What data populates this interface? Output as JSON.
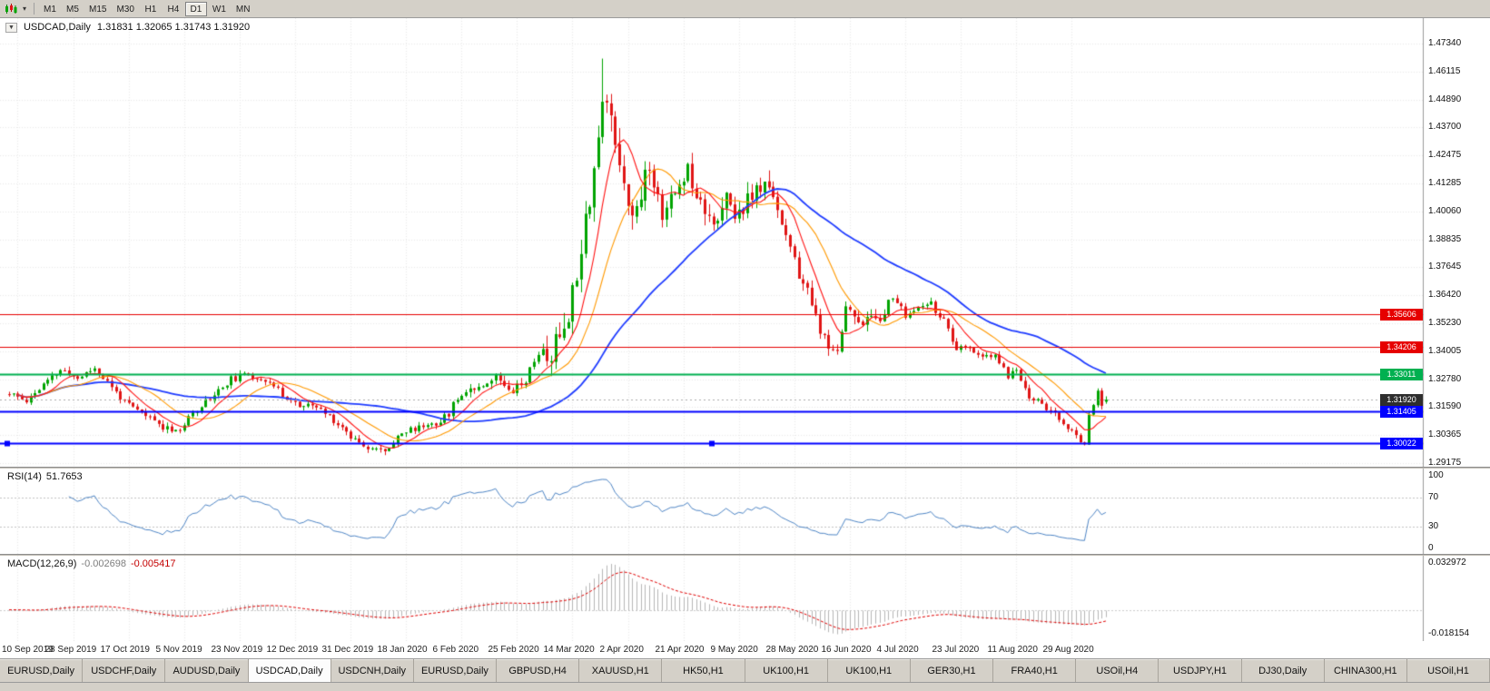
{
  "toolbar": {
    "timeframes": [
      "M1",
      "M5",
      "M15",
      "M30",
      "H1",
      "H4",
      "D1",
      "W1",
      "MN"
    ],
    "active": "D1"
  },
  "chart": {
    "symbol": "USDCAD,Daily",
    "ohlc": "1.31831 1.32065 1.31743 1.31920",
    "open": "1.31831",
    "high": "1.32065",
    "low": "1.31743",
    "close": "1.31920"
  },
  "rsi": {
    "name": "RSI(14)",
    "value": "51.7653"
  },
  "macd": {
    "name": "MACD(12,26,9)",
    "value1": "-0.002698",
    "value2": "-0.005417"
  },
  "tabs": {
    "active_index": 3,
    "items": [
      "EURUSD,Daily",
      "USDCHF,Daily",
      "AUDUSD,Daily",
      "USDCAD,Daily",
      "USDCNH,Daily",
      "EURUSD,Daily",
      "GBPUSD,H4",
      "XAUUSD,H1",
      "HK50,H1",
      "UK100,H1",
      "UK100,H1",
      "GER30,H1",
      "FRA40,H1",
      "USOil,H4",
      "USDJPY,H1",
      "DJ30,Daily",
      "CHINA300,H1",
      "USOil,H1"
    ]
  },
  "chart_data": {
    "type": "candlestick",
    "symbol": "USDCAD",
    "timeframe": "Daily",
    "candle_count": 258,
    "price_axis": {
      "max": 1.4734,
      "min": 1.29175,
      "ticks": [
        "1.47340",
        "1.46115",
        "1.44890",
        "1.43700",
        "1.42475",
        "1.41285",
        "1.40060",
        "1.38835",
        "1.37645",
        "1.36420",
        "1.35230",
        "1.34005",
        "1.32780",
        "1.31590",
        "1.30365",
        "1.29175"
      ]
    },
    "x_ticks": {
      "start_index": 2,
      "step": 13,
      "labels": [
        "10 Sep 2019",
        "28 Sep 2019",
        "17 Oct 2019",
        "5 Nov 2019",
        "23 Nov 2019",
        "12 Dec 2019",
        "31 Dec 2019",
        "18 Jan 2020",
        "6 Feb 2020",
        "25 Feb 2020",
        "14 Mar 2020",
        "2 Apr 2020",
        "21 Apr 2020",
        "9 May 2020",
        "28 May 2020",
        "16 Jun 2020",
        "4 Jul 2020",
        "23 Jul 2020",
        "11 Aug 2020",
        "29 Aug 2020"
      ]
    },
    "close_anchors": [
      [
        0,
        1.3215
      ],
      [
        4,
        1.319
      ],
      [
        8,
        1.3255
      ],
      [
        12,
        1.332
      ],
      [
        16,
        1.3285
      ],
      [
        20,
        1.333
      ],
      [
        24,
        1.3245
      ],
      [
        28,
        1.3165
      ],
      [
        32,
        1.3125
      ],
      [
        36,
        1.3075
      ],
      [
        40,
        1.306
      ],
      [
        44,
        1.3155
      ],
      [
        48,
        1.3215
      ],
      [
        52,
        1.328
      ],
      [
        56,
        1.33
      ],
      [
        60,
        1.328
      ],
      [
        64,
        1.3215
      ],
      [
        68,
        1.3165
      ],
      [
        72,
        1.316
      ],
      [
        76,
        1.3105
      ],
      [
        80,
        1.3035
      ],
      [
        84,
        1.299
      ],
      [
        88,
        1.2965
      ],
      [
        91,
        1.304
      ],
      [
        94,
        1.306
      ],
      [
        98,
        1.3085
      ],
      [
        102,
        1.311
      ],
      [
        106,
        1.3225
      ],
      [
        110,
        1.3255
      ],
      [
        114,
        1.329
      ],
      [
        118,
        1.324
      ],
      [
        121,
        1.328
      ],
      [
        124,
        1.34
      ],
      [
        127,
        1.3385
      ],
      [
        130,
        1.352
      ],
      [
        132,
        1.365
      ],
      [
        134,
        1.388
      ],
      [
        136,
        1.408
      ],
      [
        138,
        1.433
      ],
      [
        139,
        1.448
      ],
      [
        141,
        1.443
      ],
      [
        143,
        1.423
      ],
      [
        145,
        1.406
      ],
      [
        147,
        1.399
      ],
      [
        149,
        1.418
      ],
      [
        151,
        1.414
      ],
      [
        153,
        1.401
      ],
      [
        156,
        1.408
      ],
      [
        159,
        1.42
      ],
      [
        161,
        1.409
      ],
      [
        164,
        1.4
      ],
      [
        166,
        1.3945
      ],
      [
        168,
        1.406
      ],
      [
        170,
        1.399
      ],
      [
        173,
        1.405
      ],
      [
        176,
        1.411
      ],
      [
        179,
        1.409
      ],
      [
        181,
        1.396
      ],
      [
        184,
        1.378
      ],
      [
        187,
        1.365
      ],
      [
        189,
        1.355
      ],
      [
        192,
        1.339
      ],
      [
        194,
        1.342
      ],
      [
        196,
        1.359
      ],
      [
        198,
        1.3555
      ],
      [
        201,
        1.353
      ],
      [
        204,
        1.356
      ],
      [
        207,
        1.364
      ],
      [
        210,
        1.3555
      ],
      [
        213,
        1.3585
      ],
      [
        216,
        1.3605
      ],
      [
        219,
        1.353
      ],
      [
        222,
        1.3405
      ],
      [
        225,
        1.342
      ],
      [
        228,
        1.337
      ],
      [
        231,
        1.338
      ],
      [
        234,
        1.3295
      ],
      [
        236,
        1.332
      ],
      [
        239,
        1.3205
      ],
      [
        242,
        1.3175
      ],
      [
        245,
        1.3125
      ],
      [
        248,
        1.3065
      ],
      [
        250,
        1.303
      ],
      [
        252,
        1.301
      ],
      [
        253,
        1.313
      ],
      [
        255,
        1.322
      ],
      [
        256,
        1.317
      ],
      [
        257,
        1.3192
      ]
    ],
    "noise": {
      "base": 0.0032,
      "seed": 11,
      "regions": [
        {
          "from": 100,
          "to": 125,
          "amp": 0.0045
        },
        {
          "from": 126,
          "to": 150,
          "amp": 0.013
        },
        {
          "from": 151,
          "to": 178,
          "amp": 0.009
        },
        {
          "from": 179,
          "to": 205,
          "amp": 0.0065
        }
      ]
    },
    "forced_points": [
      {
        "i": 139,
        "h": 1.4669
      },
      {
        "i": 88,
        "l": 1.2952
      },
      {
        "i": 252,
        "l": 1.2994
      }
    ],
    "last_candle": {
      "o": 1.31831,
      "h": 1.32065,
      "l": 1.31743,
      "c": 1.3192
    },
    "horizontal_lines": [
      {
        "price": 1.35606,
        "label": "1.35606",
        "color": "#e60000",
        "width": 1,
        "selected": false
      },
      {
        "price": 1.34206,
        "label": "1.34206",
        "color": "#e60000",
        "width": 1,
        "selected": false
      },
      {
        "price": 1.33011,
        "label": "1.33011",
        "color": "#00b050",
        "width": 2,
        "selected": false
      },
      {
        "price": 1.31405,
        "label": "1.31405",
        "color": "#0000ff",
        "width": 2,
        "selected": false
      },
      {
        "price": 1.30022,
        "label": "1.30022",
        "color": "#0000ff",
        "width": 2,
        "selected": true
      }
    ],
    "current_price": {
      "price": 1.3192,
      "label": "1.31920",
      "color": "#2e2e2e"
    },
    "candle_colors": {
      "up": "#00a400",
      "down": "#e01515"
    },
    "moving_averages": [
      {
        "period": 46,
        "color": "#1f3cff",
        "width": 1.8
      },
      {
        "period": 17,
        "color": "#ff9900",
        "width": 1.1
      },
      {
        "period": 8,
        "color": "#ff1111",
        "width": 1.1
      }
    ],
    "rsi_panel": {
      "period": 14,
      "color": "#4f86c6",
      "levels": [
        {
          "v": 100,
          "label": "100"
        },
        {
          "v": 70,
          "label": "70"
        },
        {
          "v": 30,
          "label": "30"
        },
        {
          "v": 0,
          "label": "0"
        }
      ]
    },
    "macd_panel": {
      "fast": 12,
      "slow": 26,
      "signal": 9,
      "hist_color": "#b6b6b6",
      "signal_color": "#e00000",
      "axis_max": 0.032972,
      "axis_min": -0.018154,
      "axis_labels": [
        "0.032972",
        "-0.018154"
      ]
    }
  }
}
